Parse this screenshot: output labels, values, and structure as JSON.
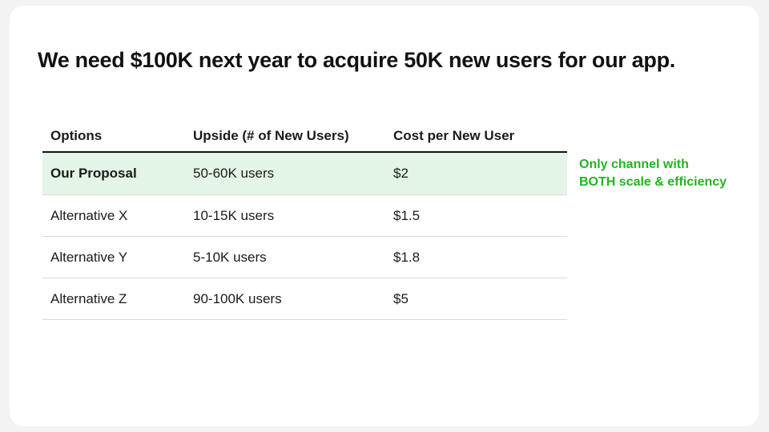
{
  "slide": {
    "title": "We need $100K next year to acquire 50K new users for our app."
  },
  "table": {
    "headers": [
      "Options",
      "Upside (# of New Users)",
      "Cost per New User"
    ],
    "rows": [
      {
        "option": "Our Proposal",
        "upside": "50-60K users",
        "cost": "$2",
        "highlight": true
      },
      {
        "option": "Alternative X",
        "upside": "10-15K users",
        "cost": "$1.5",
        "highlight": false
      },
      {
        "option": "Alternative Y",
        "upside": "5-10K users",
        "cost": "$1.8",
        "highlight": false
      },
      {
        "option": "Alternative Z",
        "upside": "90-100K users",
        "cost": "$5",
        "highlight": false
      }
    ]
  },
  "callout": {
    "line1": "Only channel with",
    "line2": "BOTH scale & efficiency",
    "color": "#22b51f"
  },
  "colors": {
    "highlight_row": "#e3f5e6",
    "background": "#ffffff"
  }
}
